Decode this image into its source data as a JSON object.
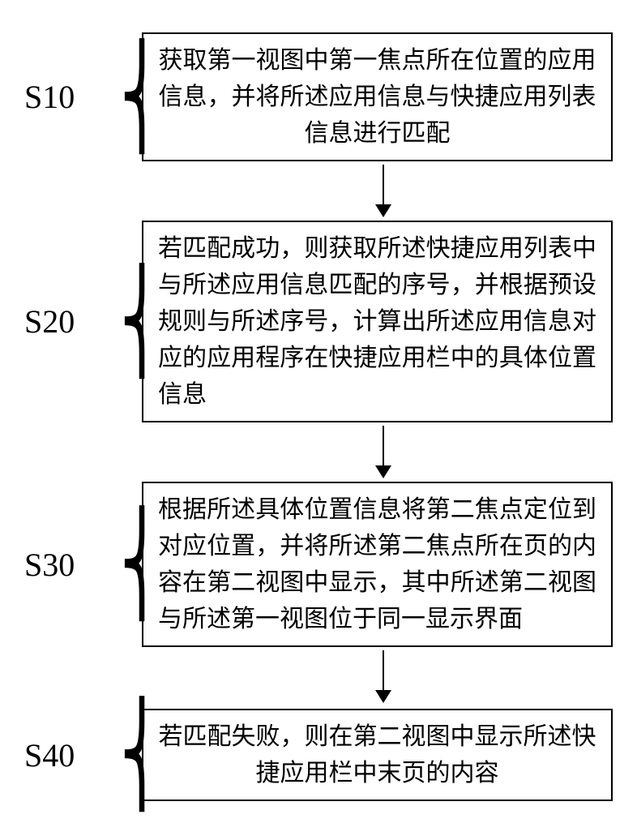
{
  "flowchart": {
    "type": "flowchart",
    "background_color": "#ffffff",
    "border_color": "#000000",
    "text_color": "#000000",
    "font_family": "KaiTi",
    "label_font_family": "Times New Roman",
    "label_fontsize": 40,
    "box_fontsize": 30,
    "border_width": 2,
    "arrow_head_size": 16,
    "nodes": [
      {
        "id": "S10",
        "label": "S10",
        "text": "获取第一视图中第一焦点所在位置的应用信息，并将所述应用信息与快捷应用列表信息进行匹配",
        "align": "center"
      },
      {
        "id": "S20",
        "label": "S20",
        "text": "若匹配成功，则获取所述快捷应用列表中与所述应用信息匹配的序号，并根据预设规则与所述序号，计算出所述应用信息对应的应用程序在快捷应用栏中的具体位置信息",
        "align": "justify"
      },
      {
        "id": "S30",
        "label": "S30",
        "text": "根据所述具体位置信息将第二焦点定位到对应位置，并将所述第二焦点所在页的内容在第二视图中显示，其中所述第二视图与所述第一视图位于同一显示界面",
        "align": "justify"
      },
      {
        "id": "S40",
        "label": "S40",
        "text": "若匹配失败，则在第二视图中显示所述快捷应用栏中末页的内容",
        "align": "center"
      }
    ],
    "edges": [
      {
        "from": "S10",
        "to": "S20"
      },
      {
        "from": "S20",
        "to": "S30"
      },
      {
        "from": "S30",
        "to": "S40"
      }
    ]
  }
}
